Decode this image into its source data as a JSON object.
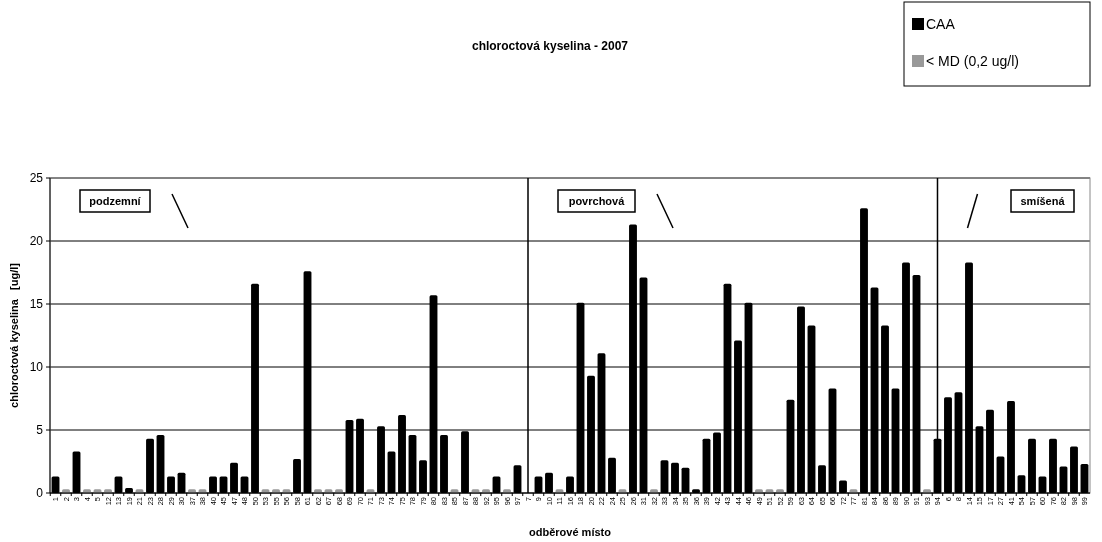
{
  "chart_data": {
    "type": "bar",
    "title": "chloroctová kyselina - 2007",
    "xlabel": "odběrové místo",
    "ylabel": "chloroctová kyselina   [ug/l]",
    "categories": [
      "1",
      "2",
      "3",
      "4",
      "5",
      "12",
      "13",
      "19",
      "21",
      "23",
      "28",
      "29",
      "30",
      "37",
      "38",
      "40",
      "45",
      "47",
      "48",
      "50",
      "53",
      "55",
      "56",
      "58",
      "61",
      "62",
      "67",
      "68",
      "69",
      "70",
      "71",
      "73",
      "74",
      "75",
      "78",
      "79",
      "80",
      "83",
      "85",
      "87",
      "88",
      "92",
      "95",
      "96",
      "97",
      "7",
      "9",
      "10",
      "11",
      "16",
      "18",
      "20",
      "22",
      "24",
      "25",
      "26",
      "31",
      "32",
      "33",
      "34",
      "35",
      "36",
      "39",
      "42",
      "43",
      "44",
      "46",
      "49",
      "51",
      "52",
      "59",
      "63",
      "64",
      "65",
      "66",
      "72",
      "77",
      "81",
      "84",
      "86",
      "89",
      "90",
      "91",
      "93",
      "94",
      "6",
      "8",
      "14",
      "15",
      "17",
      "27",
      "41",
      "54",
      "57",
      "60",
      "76",
      "82",
      "98",
      "99"
    ],
    "series": [
      {
        "name": "CAA",
        "color": "#000000",
        "values": [
          1.3,
          null,
          3.3,
          null,
          null,
          null,
          1.3,
          0.4,
          null,
          4.3,
          4.6,
          1.3,
          1.6,
          null,
          null,
          1.3,
          1.3,
          2.4,
          1.3,
          16.6,
          null,
          null,
          null,
          2.7,
          17.6,
          null,
          null,
          null,
          5.8,
          5.9,
          null,
          5.3,
          3.3,
          6.2,
          4.6,
          2.6,
          15.7,
          4.6,
          null,
          4.9,
          null,
          null,
          1.3,
          null,
          2.2,
          null,
          1.3,
          1.6,
          null,
          1.3,
          15.1,
          9.3,
          11.1,
          2.8,
          null,
          21.3,
          17.1,
          null,
          2.6,
          2.4,
          2.0,
          0.3,
          4.3,
          4.8,
          16.6,
          12.1,
          15.1,
          null,
          null,
          null,
          7.4,
          14.8,
          13.3,
          2.2,
          8.3,
          1.0,
          null,
          22.6,
          16.3,
          13.3,
          8.3,
          18.3,
          17.3,
          null,
          4.3,
          7.6,
          8.0,
          18.3,
          5.3,
          6.6,
          2.9,
          7.3,
          1.4,
          4.3,
          1.3,
          4.3,
          2.1,
          3.7,
          2.3
        ]
      },
      {
        "name": "< MD (0,2 ug/l)",
        "color": "#999999",
        "values": [
          null,
          0.3,
          null,
          0.3,
          0.3,
          0.3,
          null,
          null,
          0.3,
          null,
          null,
          null,
          null,
          0.3,
          0.3,
          null,
          null,
          null,
          null,
          null,
          0.3,
          0.3,
          0.3,
          null,
          null,
          0.3,
          0.3,
          0.3,
          null,
          null,
          0.3,
          null,
          null,
          null,
          null,
          null,
          null,
          null,
          0.3,
          null,
          0.3,
          0.3,
          null,
          0.3,
          null,
          null,
          null,
          null,
          0.3,
          null,
          null,
          null,
          null,
          null,
          0.3,
          null,
          null,
          0.3,
          null,
          null,
          null,
          null,
          null,
          null,
          null,
          null,
          null,
          0.3,
          0.3,
          0.3,
          null,
          null,
          null,
          null,
          null,
          null,
          0.3,
          null,
          null,
          null,
          null,
          null,
          null,
          0.3,
          null,
          null,
          null,
          null,
          null,
          null,
          null,
          null,
          null,
          null,
          null,
          null,
          null,
          null,
          null
        ]
      }
    ],
    "ylim": [
      0,
      25
    ],
    "yticks": [
      0,
      5,
      10,
      15,
      20,
      25
    ],
    "grid": "y",
    "legend": "top right",
    "ref_lines": [
      {
        "axis": "x",
        "value": "7",
        "color": "#000000"
      },
      {
        "axis": "x",
        "value": "94",
        "color": "#000000"
      }
    ],
    "annotations": [
      "podzemní",
      "povrchová",
      "smíšená"
    ]
  }
}
